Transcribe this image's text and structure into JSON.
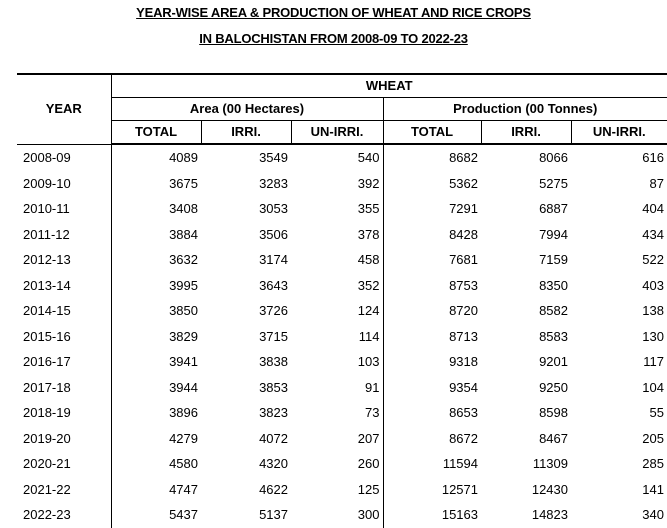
{
  "title_line1": "YEAR-WISE AREA & PRODUCTION OF WHEAT AND RICE CROPS",
  "title_line2": "IN BALOCHISTAN FROM 2008-09 TO 2022-23",
  "header": {
    "year": "YEAR",
    "crop": "WHEAT",
    "area_group": "Area (00 Hectares)",
    "production_group": "Production (00 Tonnes)",
    "sub": [
      "TOTAL",
      "IRRI.",
      "UN-IRRI.",
      "TOTAL",
      "IRRI.",
      "UN-IRRI."
    ]
  },
  "rows": [
    [
      "2008-09",
      "4089",
      "3549",
      "540",
      "8682",
      "8066",
      "616"
    ],
    [
      "2009-10",
      "3675",
      "3283",
      "392",
      "5362",
      "5275",
      "87"
    ],
    [
      "2010-11",
      "3408",
      "3053",
      "355",
      "7291",
      "6887",
      "404"
    ],
    [
      "2011-12",
      "3884",
      "3506",
      "378",
      "8428",
      "7994",
      "434"
    ],
    [
      "2012-13",
      "3632",
      "3174",
      "458",
      "7681",
      "7159",
      "522"
    ],
    [
      "2013-14",
      "3995",
      "3643",
      "352",
      "8753",
      "8350",
      "403"
    ],
    [
      "2014-15",
      "3850",
      "3726",
      "124",
      "8720",
      "8582",
      "138"
    ],
    [
      "2015-16",
      "3829",
      "3715",
      "114",
      "8713",
      "8583",
      "130"
    ],
    [
      "2016-17",
      "3941",
      "3838",
      "103",
      "9318",
      "9201",
      "117"
    ],
    [
      "2017-18",
      "3944",
      "3853",
      "91",
      "9354",
      "9250",
      "104"
    ],
    [
      "2018-19",
      "3896",
      "3823",
      "73",
      "8653",
      "8598",
      "55"
    ],
    [
      "2019-20",
      "4279",
      "4072",
      "207",
      "8672",
      "8467",
      "205"
    ],
    [
      "2020-21",
      "4580",
      "4320",
      "260",
      "11594",
      "11309",
      "285"
    ],
    [
      "2021-22",
      "4747",
      "4622",
      "125",
      "12571",
      "12430",
      "141"
    ],
    [
      "2022-23",
      "5437",
      "5137",
      "300",
      "15163",
      "14823",
      "340"
    ]
  ]
}
